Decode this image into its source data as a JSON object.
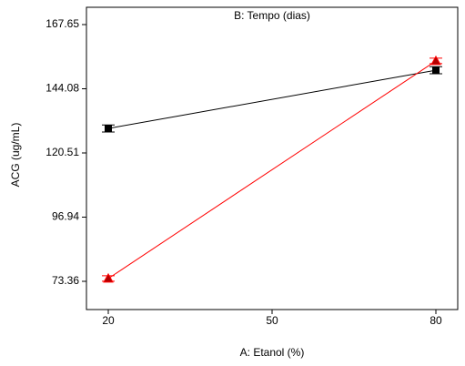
{
  "chart_data": {
    "type": "line",
    "legend_title": "B: Tempo (dias)",
    "x_label": "A: Etanol (%)",
    "y_label": "ACG (ug/mL)",
    "x": [
      20,
      80
    ],
    "series": [
      {
        "color": "#000000",
        "marker": "square",
        "values": [
          129.5,
          150.9
        ],
        "errors": [
          1.3,
          1.3
        ]
      },
      {
        "color": "#ff0000",
        "marker": "triangle",
        "values": [
          74.4,
          154.3
        ],
        "errors": [
          1.0,
          1.0
        ]
      }
    ],
    "xlim": [
      16,
      84
    ],
    "xticks": [
      20,
      50,
      80
    ],
    "ylim": [
      63.0,
      174.0
    ],
    "yticks": [
      73.36,
      96.94,
      120.51,
      144.08,
      167.65
    ]
  }
}
